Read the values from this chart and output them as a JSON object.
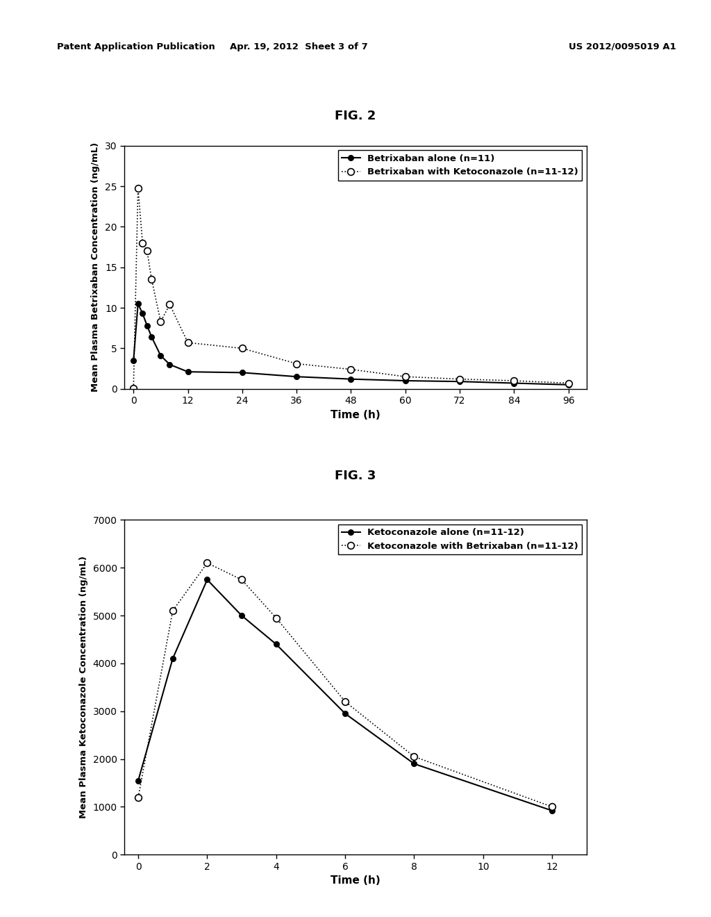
{
  "header_left": "Patent Application Publication",
  "header_mid": "Apr. 19, 2012  Sheet 3 of 7",
  "header_right": "US 2012/0095019 A1",
  "fig2_title": "FIG. 2",
  "fig2_ylabel": "Mean Plasma Betrixaban Concentration (ng/mL)",
  "fig2_xlabel": "Time (h)",
  "fig2_ylim": [
    0,
    30
  ],
  "fig2_xlim": [
    -2,
    100
  ],
  "fig2_xticks": [
    0,
    12,
    24,
    36,
    48,
    60,
    72,
    84,
    96
  ],
  "fig2_yticks": [
    0,
    5,
    10,
    15,
    20,
    25,
    30
  ],
  "fig2_series1_label": "Betrixaban alone (n=11)",
  "fig2_series1_x": [
    0,
    1,
    2,
    3,
    4,
    6,
    8,
    12,
    24,
    36,
    48,
    60,
    72,
    84,
    96
  ],
  "fig2_series1_y": [
    3.5,
    10.5,
    9.3,
    7.8,
    6.4,
    4.1,
    3.0,
    2.1,
    2.0,
    1.5,
    1.2,
    1.0,
    0.9,
    0.7,
    0.5
  ],
  "fig2_series2_label": "Betrixaban with Ketoconazole (n=11-12)",
  "fig2_series2_x": [
    0,
    1,
    2,
    3,
    4,
    6,
    8,
    12,
    24,
    36,
    48,
    60,
    72,
    84,
    96
  ],
  "fig2_series2_y": [
    0.1,
    24.8,
    18.0,
    17.0,
    13.5,
    8.3,
    10.4,
    5.7,
    5.0,
    3.1,
    2.4,
    1.5,
    1.2,
    1.0,
    0.7
  ],
  "fig3_title": "FIG. 3",
  "fig3_ylabel": "Mean Plasma Ketoconazole Concentration (ng/mL)",
  "fig3_xlabel": "Time (h)",
  "fig3_ylim": [
    0,
    7000
  ],
  "fig3_xlim": [
    -0.4,
    13
  ],
  "fig3_xticks": [
    0,
    2,
    4,
    6,
    8,
    10,
    12
  ],
  "fig3_yticks": [
    0,
    1000,
    2000,
    3000,
    4000,
    5000,
    6000,
    7000
  ],
  "fig3_series1_label": "Ketoconazole alone (n=11-12)",
  "fig3_series1_x": [
    0,
    1,
    2,
    3,
    4,
    6,
    8,
    12
  ],
  "fig3_series1_y": [
    1550,
    4100,
    5750,
    5000,
    4400,
    2950,
    1900,
    920
  ],
  "fig3_series2_label": "Ketoconazole with Betrixaban (n=11-12)",
  "fig3_series2_x": [
    0,
    1,
    2,
    3,
    4,
    6,
    8,
    12
  ],
  "fig3_series2_y": [
    1200,
    5100,
    6100,
    5750,
    4950,
    3200,
    2050,
    1000
  ],
  "line_color": "#000000",
  "bg_color": "#ffffff",
  "font_family": "DejaVu Sans"
}
